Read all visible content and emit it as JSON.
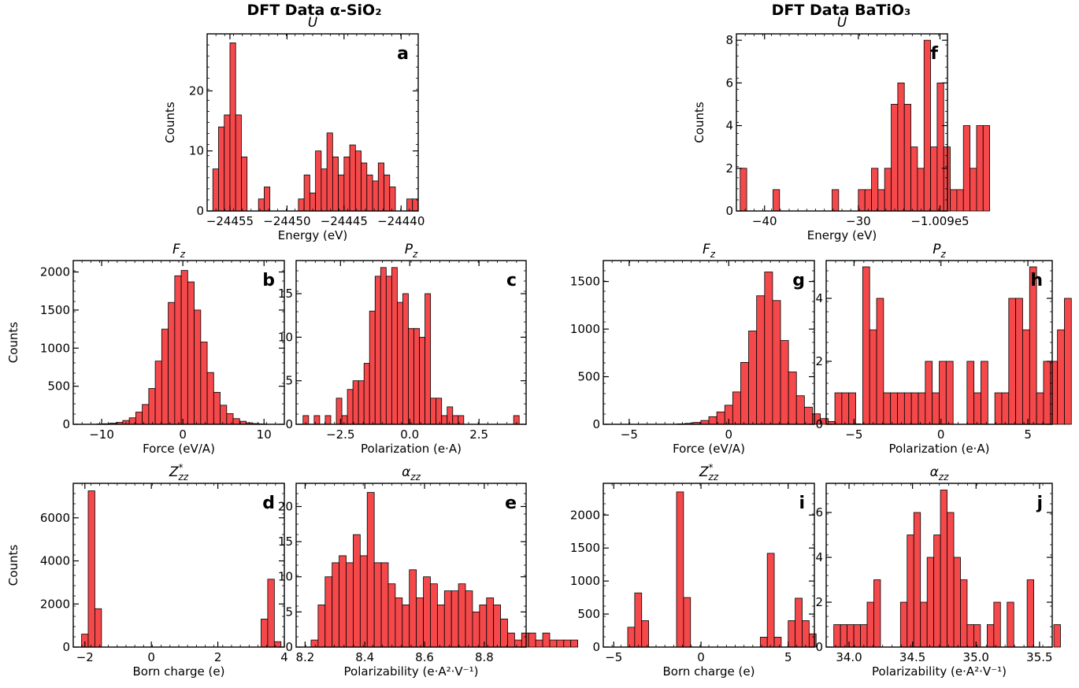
{
  "columns": [
    {
      "title": "DFT Data α-SiO₂"
    },
    {
      "title": "DFT Data BaTiO₃"
    }
  ],
  "colors": {
    "bar_fill": "#f4484a",
    "bar_edge": "#000000"
  },
  "chart_data": [
    {
      "type": "bar",
      "panel_letter": "a",
      "title": "U",
      "xlabel": "Energy (eV)",
      "ylabel": "Counts",
      "x_tick_labels": [
        "−24455",
        "−24450",
        "−24445",
        "−24440"
      ],
      "bin_start": -24456.5,
      "bin_width": 0.5,
      "xlim": [
        -24457,
        -24438.5
      ],
      "ylim": [
        0,
        29.5
      ],
      "yticks": [
        0,
        10,
        20
      ],
      "values": [
        7,
        14,
        16,
        28,
        16,
        9,
        0,
        0,
        2,
        4,
        0,
        0,
        0,
        0,
        0,
        2,
        6,
        3,
        10,
        7,
        13,
        9,
        6,
        9,
        11,
        10,
        8,
        6,
        5,
        8,
        6,
        4,
        0,
        0,
        2,
        2
      ]
    },
    {
      "type": "bar",
      "panel_letter": "b",
      "title": "F_z",
      "xlabel": "Force (eV/A)",
      "ylabel": "Counts",
      "x_tick_labels": [
        "−10",
        "0",
        "10"
      ],
      "bin_start": -13,
      "bin_width": 0.8,
      "xlim": [
        -13.5,
        12.5
      ],
      "ylim": [
        0,
        2150
      ],
      "yticks": [
        0,
        500,
        1000,
        1500,
        2000
      ],
      "values": [
        0,
        0,
        0,
        5,
        8,
        15,
        25,
        50,
        85,
        160,
        260,
        470,
        830,
        1250,
        1600,
        1950,
        2020,
        1870,
        1500,
        1080,
        680,
        420,
        250,
        140,
        75,
        40,
        20,
        10,
        5,
        0,
        0
      ]
    },
    {
      "type": "bar",
      "panel_letter": "c",
      "title": "P_z",
      "xlabel": "Polarization (e·A)",
      "ylabel": "",
      "x_tick_labels": [
        "−2.5",
        "0.0",
        "2.5"
      ],
      "bin_start": -3.85,
      "bin_width": 0.2,
      "xlim": [
        -4.1,
        4.2
      ],
      "ylim": [
        0,
        18.8
      ],
      "yticks": [
        0,
        5,
        10,
        15
      ],
      "values": [
        1,
        0,
        1,
        0,
        1,
        0,
        3,
        1,
        4,
        5,
        5,
        7,
        13,
        17,
        18,
        17,
        18,
        14,
        15,
        11,
        11,
        10,
        15,
        3,
        3,
        1,
        2,
        1,
        1,
        0,
        0,
        0,
        0,
        0,
        0,
        0,
        0,
        0,
        1
      ]
    },
    {
      "type": "bar",
      "panel_letter": "d",
      "title": "Z*_zz",
      "xlabel": "Born charge (e)",
      "ylabel": "Counts",
      "x_tick_labels": [
        "−2",
        "0",
        "2",
        "4"
      ],
      "bin_start": -2.1,
      "bin_width": 0.2,
      "xlim": [
        -2.35,
        4.0
      ],
      "ylim": [
        0,
        7600
      ],
      "yticks": [
        0,
        2000,
        4000,
        6000
      ],
      "values": [
        600,
        7250,
        1780,
        0,
        0,
        0,
        0,
        0,
        0,
        0,
        0,
        0,
        0,
        0,
        0,
        0,
        0,
        0,
        0,
        0,
        0,
        0,
        0,
        0,
        0,
        0,
        0,
        1300,
        3150,
        250
      ]
    },
    {
      "type": "bar",
      "panel_letter": "e",
      "title": "α_zz",
      "xlabel": "Polarizability (e·A²·V⁻¹)",
      "ylabel": "",
      "x_tick_labels": [
        "8.2",
        "8.4",
        "8.6",
        "8.8"
      ],
      "bin_start": 8.22,
      "bin_width": 0.0235,
      "xlim": [
        8.17,
        8.94
      ],
      "ylim": [
        0,
        23.3
      ],
      "yticks": [
        0,
        5,
        10,
        15,
        20
      ],
      "values": [
        1,
        6,
        10,
        12,
        13,
        12,
        16,
        13,
        22,
        12,
        12,
        9,
        7,
        6,
        11,
        7,
        10,
        9,
        6,
        8,
        8,
        9,
        8,
        5,
        6,
        7,
        6,
        4,
        2,
        1,
        2,
        2,
        1,
        2,
        1,
        1,
        1,
        1
      ]
    },
    {
      "type": "bar",
      "panel_letter": "f",
      "title": "U",
      "xlabel": "Energy (eV)",
      "ylabel": "Counts",
      "x_tick_labels": [
        "−40",
        "−30",
        "−1.009e5"
      ],
      "bin_start": -42.6,
      "bin_width": 0.7,
      "xlim": [
        -43,
        -20.5
      ],
      "ylim": [
        0,
        8.3
      ],
      "yticks": [
        0,
        2,
        4,
        6,
        8
      ],
      "values": [
        2,
        0,
        0,
        0,
        0,
        1,
        0,
        0,
        0,
        0,
        0,
        0,
        0,
        0,
        1,
        0,
        0,
        0,
        1,
        1,
        2,
        1,
        2,
        5,
        6,
        5,
        3,
        2,
        8,
        3,
        6,
        3,
        1,
        1,
        4,
        2,
        4,
        4
      ]
    },
    {
      "type": "bar",
      "panel_letter": "g",
      "title": "F_z",
      "xlabel": "Force (eV/A)",
      "ylabel": "",
      "x_tick_labels": [
        "−5",
        "0"
      ],
      "bin_start": -5.8,
      "bin_width": 0.4,
      "xlim": [
        -6.3,
        4.3
      ],
      "ylim": [
        0,
        1720
      ],
      "yticks": [
        0,
        500,
        1000,
        1500
      ],
      "values": [
        0,
        0,
        0,
        0,
        0,
        0,
        0,
        0,
        5,
        10,
        20,
        40,
        80,
        130,
        200,
        340,
        650,
        980,
        1350,
        1600,
        1300,
        880,
        550,
        300,
        180,
        110,
        60,
        30,
        20,
        10,
        5
      ]
    },
    {
      "type": "bar",
      "panel_letter": "h",
      "title": "P_z",
      "xlabel": "Polarization (e·A)",
      "ylabel": "",
      "x_tick_labels": [
        "−5",
        "0",
        "5"
      ],
      "bin_start": -6.1,
      "bin_width": 0.4,
      "xlim": [
        -6.6,
        6.4
      ],
      "ylim": [
        0,
        5.2
      ],
      "yticks": [
        0,
        2,
        4
      ],
      "values": [
        1,
        1,
        1,
        0,
        5,
        3,
        4,
        1,
        1,
        1,
        1,
        1,
        1,
        2,
        1,
        2,
        2,
        0,
        0,
        2,
        1,
        2,
        0,
        1,
        1,
        4,
        4,
        3,
        5,
        1,
        2,
        2,
        3,
        4
      ]
    },
    {
      "type": "bar",
      "panel_letter": "i",
      "title": "Z*_zz",
      "xlabel": "Born charge (e)",
      "ylabel": "",
      "x_tick_labels": [
        "−5",
        "0",
        "5"
      ],
      "bin_start": -4.6,
      "bin_width": 0.4,
      "xlim": [
        -5.6,
        6.5
      ],
      "ylim": [
        0,
        2480
      ],
      "yticks": [
        0,
        500,
        1000,
        1500,
        2000
      ],
      "values": [
        0,
        300,
        820,
        400,
        0,
        0,
        0,
        0,
        2350,
        750,
        0,
        0,
        0,
        0,
        0,
        0,
        0,
        0,
        0,
        0,
        150,
        1420,
        150,
        0,
        400,
        740,
        400,
        200
      ]
    },
    {
      "type": "bar",
      "panel_letter": "j",
      "title": "α_zz",
      "xlabel": "Polarizability (e·A²·V⁻¹)",
      "ylabel": "",
      "x_tick_labels": [
        "34.0",
        "34.5",
        "35.0",
        "35.5"
      ],
      "bin_start": 33.88,
      "bin_width": 0.0525,
      "xlim": [
        33.82,
        35.6
      ],
      "ylim": [
        0,
        7.3
      ],
      "yticks": [
        0,
        2,
        4,
        6
      ],
      "values": [
        1,
        1,
        1,
        1,
        1,
        2,
        3,
        0,
        0,
        0,
        2,
        5,
        6,
        2,
        4,
        5,
        7,
        6,
        4,
        3,
        1,
        1,
        0,
        1,
        2,
        0,
        2,
        0,
        0,
        3,
        0,
        0,
        0,
        1
      ]
    }
  ]
}
